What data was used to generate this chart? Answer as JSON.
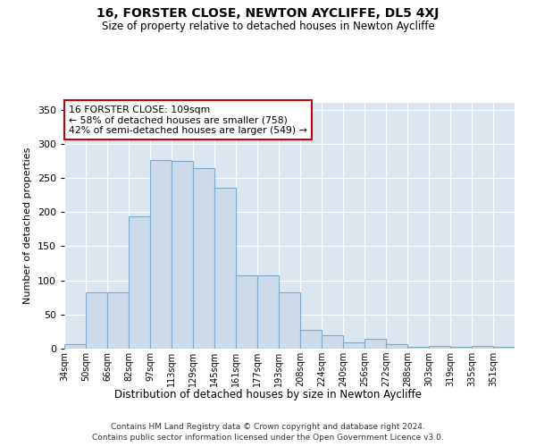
{
  "title": "16, FORSTER CLOSE, NEWTON AYCLIFFE, DL5 4XJ",
  "subtitle": "Size of property relative to detached houses in Newton Aycliffe",
  "xlabel": "Distribution of detached houses by size in Newton Aycliffe",
  "ylabel": "Number of detached properties",
  "categories": [
    "34sqm",
    "50sqm",
    "66sqm",
    "82sqm",
    "97sqm",
    "113sqm",
    "129sqm",
    "145sqm",
    "161sqm",
    "177sqm",
    "193sqm",
    "208sqm",
    "224sqm",
    "240sqm",
    "256sqm",
    "272sqm",
    "288sqm",
    "303sqm",
    "319sqm",
    "335sqm",
    "351sqm"
  ],
  "bar_values": [
    6,
    82,
    82,
    194,
    276,
    275,
    265,
    235,
    107,
    107,
    82,
    27,
    19,
    9,
    14,
    6,
    3,
    4,
    3,
    4,
    3
  ],
  "bar_color": "#ccdaea",
  "bar_edge_color": "#7aaac8",
  "annotation_text": "16 FORSTER CLOSE: 109sqm\n← 58% of detached houses are smaller (758)\n42% of semi-detached houses are larger (549) →",
  "annotation_box_color": "#ffffff",
  "annotation_box_edge": "#cc0000",
  "bg_color": "#dce6f0",
  "footer1": "Contains HM Land Registry data © Crown copyright and database right 2024.",
  "footer2": "Contains public sector information licensed under the Open Government Licence v3.0.",
  "ylim": [
    0,
    360
  ],
  "yticks": [
    0,
    50,
    100,
    150,
    200,
    250,
    300,
    350
  ]
}
